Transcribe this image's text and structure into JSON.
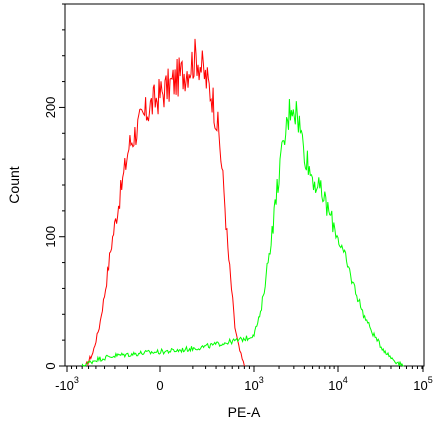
{
  "chart_data": {
    "type": "line",
    "title": "",
    "xlabel": "PE-A",
    "ylabel": "Count",
    "x_scale": "biexponential",
    "ylim": [
      0,
      280
    ],
    "grid": false,
    "legend": "none",
    "y_ticks": [
      {
        "value": 0,
        "label": "0"
      },
      {
        "value": 100,
        "label": "100"
      },
      {
        "value": 200,
        "label": "200"
      }
    ],
    "x_ticks": [
      {
        "value": -1000,
        "base": "-10",
        "exp": "3"
      },
      {
        "value": 0,
        "base": "0",
        "exp": ""
      },
      {
        "value": 1000,
        "base": "10",
        "exp": "3"
      },
      {
        "value": 10000,
        "base": "10",
        "exp": "4"
      },
      {
        "value": 100000,
        "base": "10",
        "exp": "5"
      }
    ],
    "series": [
      {
        "color": "#ff0000",
        "points": [
          [
            -640,
            0
          ],
          [
            -540,
            10
          ],
          [
            -460,
            30
          ],
          [
            -400,
            55
          ],
          [
            -330,
            95
          ],
          [
            -260,
            130
          ],
          [
            -190,
            170
          ],
          [
            -130,
            185
          ],
          [
            -60,
            200
          ],
          [
            0,
            210
          ],
          [
            80,
            220
          ],
          [
            160,
            230
          ],
          [
            230,
            240
          ],
          [
            290,
            225
          ],
          [
            360,
            210
          ],
          [
            430,
            180
          ],
          [
            490,
            135
          ],
          [
            540,
            90
          ],
          [
            590,
            60
          ],
          [
            640,
            30
          ],
          [
            700,
            15
          ],
          [
            760,
            5
          ],
          [
            800,
            0
          ]
        ]
      },
      {
        "color": "#00ff00",
        "points": [
          [
            -700,
            0
          ],
          [
            -500,
            5
          ],
          [
            -300,
            8
          ],
          [
            -100,
            10
          ],
          [
            100,
            12
          ],
          [
            300,
            15
          ],
          [
            500,
            18
          ],
          [
            700,
            20
          ],
          [
            900,
            22
          ],
          [
            1000,
            25
          ],
          [
            1200,
            40
          ],
          [
            1400,
            70
          ],
          [
            1700,
            110
          ],
          [
            2000,
            150
          ],
          [
            2400,
            180
          ],
          [
            2800,
            205
          ],
          [
            3300,
            195
          ],
          [
            3900,
            170
          ],
          [
            4700,
            150
          ],
          [
            5600,
            140
          ],
          [
            6800,
            130
          ],
          [
            8200,
            115
          ],
          [
            10000,
            100
          ],
          [
            12500,
            80
          ],
          [
            15500,
            60
          ],
          [
            19500,
            40
          ],
          [
            25000,
            25
          ],
          [
            31000,
            15
          ],
          [
            38000,
            8
          ],
          [
            47000,
            3
          ],
          [
            56000,
            0
          ]
        ]
      }
    ]
  }
}
